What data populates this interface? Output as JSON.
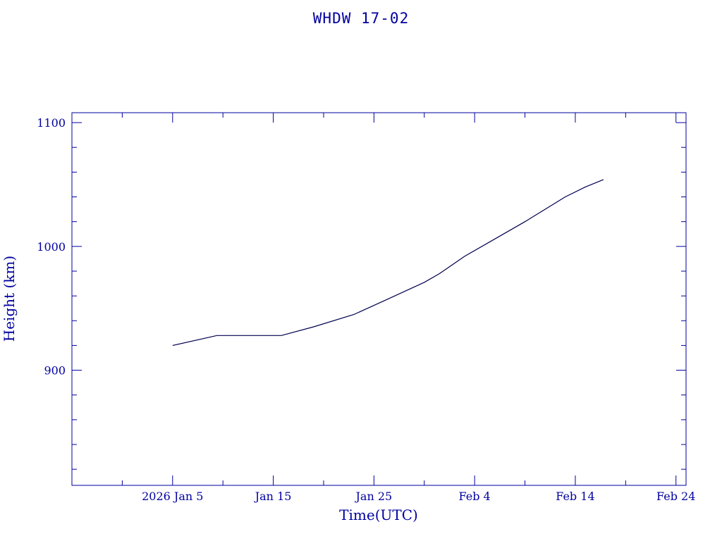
{
  "chart_data": {
    "type": "line",
    "title": "WHDW 17-02",
    "xlabel": "Time(UTC)",
    "ylabel": "Height (km)",
    "x_is_date": true,
    "xlim": [
      "2025-12-26",
      "2026-02-25"
    ],
    "ylim": [
      807,
      1108
    ],
    "x_ticks": [
      {
        "label": "2026 Jan  5",
        "date": "2026-01-05"
      },
      {
        "label": "Jan 15",
        "date": "2026-01-15"
      },
      {
        "label": "Jan 25",
        "date": "2026-01-25"
      },
      {
        "label": "Feb  4",
        "date": "2026-02-04"
      },
      {
        "label": "Feb 14",
        "date": "2026-02-14"
      },
      {
        "label": "Feb 24",
        "date": "2026-02-24"
      }
    ],
    "y_ticks": [
      900,
      1000,
      1100
    ],
    "series": [
      {
        "color": "#000050",
        "x": [
          "2026-01-05",
          "2026-01-09.4",
          "2026-01-15.8",
          "2026-01-19",
          "2026-01-23",
          "2026-01-26",
          "2026-01-30",
          "2026-01-31.5",
          "2026-02-03",
          "2026-02-06",
          "2026-02-09",
          "2026-02-11",
          "2026-02-13",
          "2026-02-15",
          "2026-02-16.8"
        ],
        "y": [
          920,
          928,
          928,
          935,
          945,
          956,
          971,
          978,
          992,
          1006,
          1020,
          1030,
          1040,
          1048,
          1054
        ]
      }
    ]
  },
  "colors": {
    "axis": "#0000a0",
    "line": "#000050"
  }
}
